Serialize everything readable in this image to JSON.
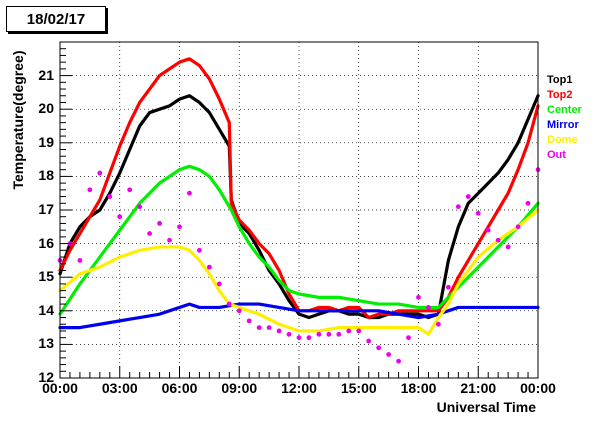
{
  "date_label": "18/02/17",
  "chart_data": {
    "type": "scatter",
    "title": "18/02/17",
    "xlabel": "Universal Time",
    "ylabel": "Temperature(degree)",
    "xlim": [
      0,
      24
    ],
    "ylim": [
      12,
      22
    ],
    "grid": true,
    "legend_position": "right",
    "x_tick_labels": [
      "00:00",
      "03:00",
      "06:00",
      "09:00",
      "12:00",
      "15:00",
      "18:00",
      "21:00",
      "00:00"
    ],
    "y_tick_labels": [
      "12",
      "13",
      "14",
      "15",
      "16",
      "17",
      "18",
      "19",
      "20",
      "21"
    ],
    "series": [
      {
        "name": "Top1",
        "color": "#000000",
        "x": [
          0,
          0.5,
          1,
          1.5,
          2,
          2.5,
          3,
          3.5,
          4,
          4.5,
          5,
          5.5,
          6,
          6.5,
          7,
          7.5,
          8,
          8.5,
          8.6,
          9,
          9.5,
          10,
          10.5,
          11,
          11.5,
          12,
          12.5,
          13,
          13.5,
          14,
          14.5,
          15,
          15.5,
          16,
          16.5,
          17,
          17.5,
          18,
          18.5,
          19,
          19.5,
          20,
          20.5,
          21,
          21.5,
          22,
          22.5,
          23,
          23.5,
          24
        ],
        "y": [
          15.1,
          16,
          16.5,
          16.8,
          17,
          17.5,
          18.1,
          18.8,
          19.5,
          19.9,
          20,
          20.1,
          20.3,
          20.4,
          20.2,
          19.9,
          19.4,
          18.9,
          17.3,
          16.6,
          16.3,
          15.8,
          15.2,
          14.8,
          14.3,
          13.9,
          13.8,
          13.9,
          14,
          14,
          13.9,
          13.9,
          13.8,
          13.8,
          13.9,
          13.9,
          13.9,
          13.9,
          13.8,
          13.9,
          15.5,
          16.5,
          17.2,
          17.5,
          17.8,
          18.1,
          18.5,
          19,
          19.7,
          20.4
        ]
      },
      {
        "name": "Top2",
        "color": "#ff0000",
        "x": [
          0,
          0.5,
          1,
          1.5,
          2,
          2.5,
          3,
          3.5,
          4,
          4.5,
          5,
          5.5,
          6,
          6.5,
          7,
          7.5,
          8,
          8.5,
          8.6,
          9,
          9.5,
          10,
          10.5,
          11,
          11.5,
          12,
          12.5,
          13,
          13.5,
          14,
          14.5,
          15,
          15.5,
          16,
          16.5,
          17,
          17.5,
          18,
          18.5,
          19,
          19.5,
          20,
          20.5,
          21,
          21.5,
          22,
          22.5,
          23,
          23.5,
          24
        ],
        "y": [
          15.2,
          15.8,
          16.3,
          16.8,
          17.3,
          18.1,
          18.9,
          19.6,
          20.2,
          20.6,
          21,
          21.2,
          21.4,
          21.5,
          21.3,
          20.9,
          20.3,
          19.6,
          17.2,
          16.7,
          16.4,
          16,
          15.7,
          15.2,
          14.5,
          14,
          14,
          14.1,
          14.1,
          14,
          14.1,
          14.1,
          13.8,
          13.9,
          13.9,
          14,
          14,
          14,
          14,
          14,
          14.4,
          15,
          15.5,
          16,
          16.5,
          17,
          17.5,
          18.2,
          19,
          20.1
        ]
      },
      {
        "name": "Center",
        "color": "#00ee00",
        "x": [
          0,
          1,
          2,
          3,
          4,
          5,
          6,
          6.5,
          7,
          7.5,
          8,
          8.5,
          8.6,
          9,
          9.5,
          10,
          10.5,
          11,
          11.5,
          12,
          13,
          14,
          15,
          16,
          17,
          18,
          19,
          20,
          21,
          22,
          23,
          24
        ],
        "y": [
          13.9,
          14.8,
          15.6,
          16.4,
          17.2,
          17.8,
          18.2,
          18.3,
          18.2,
          18,
          17.6,
          17.1,
          17,
          16.5,
          16,
          15.6,
          15.3,
          14.9,
          14.6,
          14.5,
          14.4,
          14.4,
          14.3,
          14.2,
          14.2,
          14.1,
          14.1,
          14.7,
          15.3,
          15.9,
          16.5,
          17.2
        ]
      },
      {
        "name": "Mirror",
        "color": "#0000ee",
        "x": [
          0,
          1,
          2,
          3,
          4,
          5,
          6,
          6.5,
          7,
          8,
          9,
          10,
          11,
          12,
          13,
          14,
          15,
          16,
          17,
          18,
          19,
          20,
          21,
          22,
          23,
          24
        ],
        "y": [
          13.5,
          13.5,
          13.6,
          13.7,
          13.8,
          13.9,
          14.1,
          14.2,
          14.1,
          14.1,
          14.2,
          14.2,
          14.1,
          14,
          14,
          14,
          14,
          14,
          13.9,
          13.8,
          13.9,
          14.1,
          14.1,
          14.1,
          14.1,
          14.1
        ]
      },
      {
        "name": "Dome",
        "color": "#ffee00",
        "x": [
          0,
          1,
          2,
          3,
          4,
          5,
          6,
          6.5,
          7,
          7.5,
          8,
          8.5,
          9,
          10,
          11,
          12,
          13,
          14,
          15,
          16,
          17,
          18,
          18.5,
          19,
          19.5,
          20,
          21,
          22,
          23,
          24
        ],
        "y": [
          14.6,
          15.1,
          15.3,
          15.6,
          15.8,
          15.9,
          15.9,
          15.8,
          15.5,
          15.1,
          14.6,
          14.2,
          14.1,
          13.9,
          13.6,
          13.4,
          13.4,
          13.5,
          13.5,
          13.5,
          13.5,
          13.5,
          13.3,
          13.8,
          14.2,
          14.8,
          15.6,
          16.1,
          16.5,
          17
        ]
      },
      {
        "name": "Out",
        "color": "#ee00ee",
        "x": [
          0,
          0.5,
          1,
          1.5,
          2,
          2.5,
          3,
          3.5,
          4,
          4.5,
          5,
          5.5,
          6,
          6.5,
          7,
          7.5,
          8,
          8.5,
          9,
          9.5,
          10,
          10.5,
          11,
          11.5,
          12,
          12.5,
          13,
          13.5,
          14,
          14.5,
          15,
          15.5,
          16,
          16.5,
          17,
          17.5,
          18,
          18.5,
          19,
          19.5,
          20,
          20.5,
          21,
          21.5,
          22,
          22.5,
          23,
          23.5,
          24
        ],
        "y": [
          15.5,
          16,
          15.5,
          17.6,
          18.1,
          17.4,
          16.8,
          17.6,
          17.1,
          16.3,
          16.6,
          16.1,
          16.5,
          17.5,
          15.8,
          15.3,
          14.8,
          14.2,
          14,
          13.7,
          13.5,
          13.5,
          13.4,
          13.3,
          13.2,
          13.2,
          13.3,
          13.3,
          13.3,
          13.4,
          13.4,
          13.1,
          12.9,
          12.7,
          12.5,
          13.2,
          14.4,
          14.1,
          13.6,
          14.7,
          17.1,
          17.4,
          16.9,
          16.4,
          16.1,
          15.9,
          16.5,
          17.2,
          18.2
        ]
      }
    ]
  }
}
